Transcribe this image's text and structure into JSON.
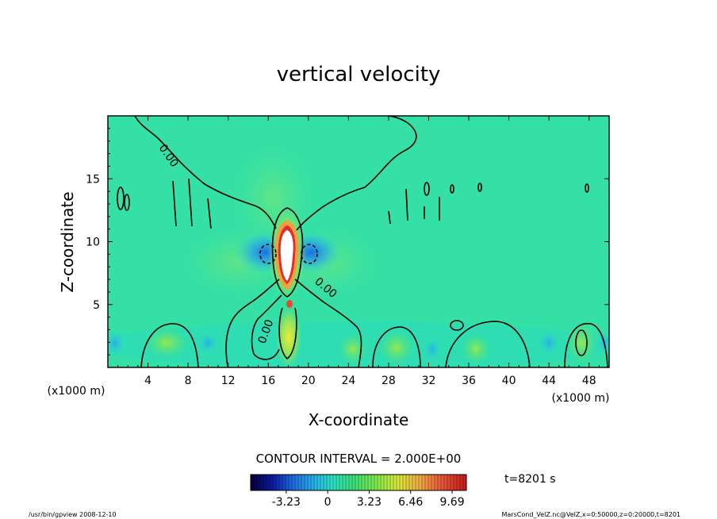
{
  "chart_data": {
    "type": "heatmap",
    "title": "vertical velocity",
    "xlabel": "X-coordinate",
    "ylabel": "Z-coordinate",
    "x_unit": "(x1000 m)",
    "y_unit": "(x1000 m)",
    "xlim": [
      0,
      50
    ],
    "ylim": [
      0,
      20
    ],
    "x_ticks": [
      4,
      8,
      12,
      16,
      20,
      24,
      28,
      32,
      36,
      40,
      44,
      48
    ],
    "y_ticks": [
      5,
      10,
      15
    ],
    "contour_interval_text": "CONTOUR INTERVAL = 2.000E+00",
    "contour_labels": [
      "0.00",
      "0.00",
      "0.00"
    ],
    "colorbar": {
      "tick_labels": [
        "-3.23",
        "0",
        "3.23",
        "6.46",
        "9.69"
      ],
      "tick_values": [
        -3.23,
        0,
        3.23,
        6.46,
        9.69
      ],
      "min": -6.0,
      "max": 10.8
    },
    "time_label": "t=8201 s",
    "footer_left": "/usr/bin/gpview   2008-12-10",
    "footer_right": "MarsCond_VelZ.nc@VelZ,x=0:50000,z=0:20000,t=8201",
    "features": [
      {
        "name": "updraft core",
        "x": 18.2,
        "z": 9.0,
        "value": 12.0
      },
      {
        "name": "downdraft left",
        "x": 16.0,
        "z": 9.2,
        "value": -3.0
      },
      {
        "name": "downdraft right",
        "x": 20.0,
        "z": 9.2,
        "value": -3.0
      },
      {
        "name": "lower updraft",
        "x": 18.0,
        "z": 2.5,
        "value": 3.0
      },
      {
        "name": "low-level cell",
        "x": 47.0,
        "z": 2.0,
        "value": 2.5
      }
    ]
  },
  "colors": {
    "background_field": "#2fe0a3",
    "negative": "#1e73e8",
    "positive": "#e8e23a",
    "core": "#ffffff"
  }
}
